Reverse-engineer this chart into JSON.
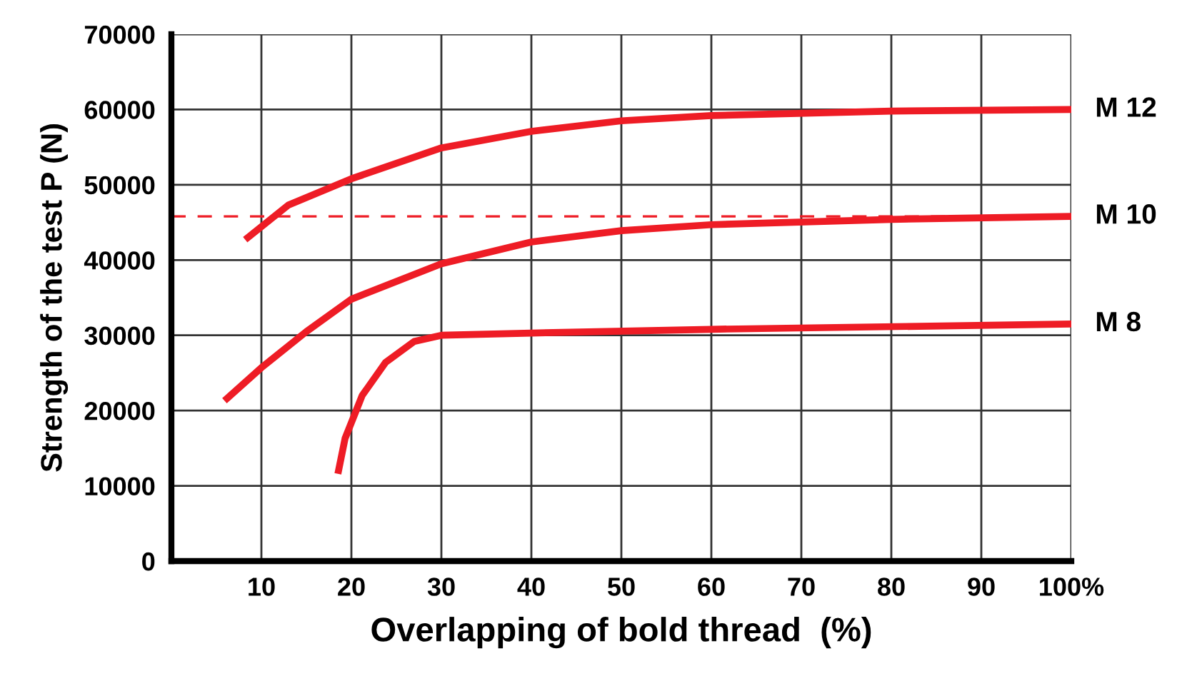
{
  "chart_data": {
    "type": "line",
    "xlabel": "Overlapping of bold thread  (%)",
    "ylabel": "Strength of the test P (N)",
    "xlim": [
      0,
      100
    ],
    "xticks": [
      10,
      20,
      30,
      40,
      50,
      60,
      70,
      80,
      90,
      {
        "value": 100,
        "label": "100%"
      }
    ],
    "ylim": [
      0,
      70000
    ],
    "yticks": [
      0,
      10000,
      20000,
      30000,
      40000,
      50000,
      60000,
      70000
    ],
    "grid": true,
    "legend": false,
    "marker": "none",
    "line_style": "solid",
    "series": [
      {
        "name": "M 12",
        "color": "#ee1c25",
        "x": [
          8.2,
          13,
          20,
          30,
          40,
          50,
          60,
          80,
          100
        ],
        "values": [
          42700,
          47300,
          50800,
          54900,
          57100,
          58500,
          59200,
          59800,
          60000
        ]
      },
      {
        "name": "M 10",
        "color": "#ee1c25",
        "x": [
          5.9,
          10,
          15,
          20,
          30,
          40,
          50,
          60,
          80,
          100
        ],
        "values": [
          21300,
          25700,
          30500,
          34800,
          39500,
          42400,
          43900,
          44700,
          45400,
          45800
        ]
      },
      {
        "name": "M 8",
        "color": "#ee1c25",
        "x": [
          18.5,
          19.3,
          21.2,
          23.8,
          27,
          30,
          40,
          60,
          100
        ],
        "values": [
          11600,
          16300,
          22000,
          26400,
          29200,
          30000,
          30300,
          30800,
          31500
        ]
      }
    ],
    "ref_lines": [
      {
        "axis": "y",
        "value": 45800,
        "color": "#ee1c25",
        "line_style": "dashed"
      }
    ]
  }
}
